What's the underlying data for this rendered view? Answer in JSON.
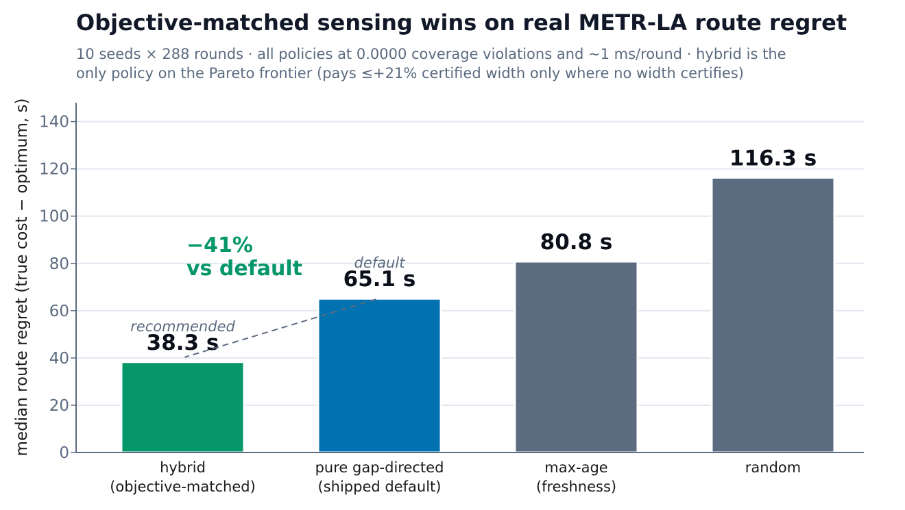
{
  "chart_data": {
    "type": "bar",
    "title": "Objective-matched sensing wins on real METR-LA route regret",
    "subtitle_lines": [
      "10 seeds × 288 rounds · all policies at 0.0000 coverage violations and ~1 ms/round · hybrid is the",
      "only policy on the Pareto frontier (pays ≤+21% certified width only where no width certifies)"
    ],
    "xlabel": "",
    "ylabel": "median route regret   (true cost − optimum, s)",
    "ylim": [
      0,
      148
    ],
    "yticks": [
      0,
      20,
      40,
      60,
      80,
      100,
      120,
      140
    ],
    "grid": true,
    "categories": [
      [
        "hybrid",
        "(objective-matched)"
      ],
      [
        "pure gap-directed",
        "(shipped default)"
      ],
      [
        "max-age",
        "(freshness)"
      ],
      [
        "random"
      ]
    ],
    "values": [
      38.3,
      65.1,
      80.8,
      116.3
    ],
    "value_labels": [
      "38.3 s",
      "65.1 s",
      "80.8 s",
      "116.3 s"
    ],
    "bar_tags": [
      "recommended",
      "default",
      "",
      ""
    ],
    "colors": [
      "#059669",
      "#0072b2",
      "#5b6b80",
      "#5b6b80"
    ],
    "annotation": {
      "lines": [
        "−41%",
        "vs default"
      ],
      "color": "#059669",
      "from_category": 1,
      "to_category": 0,
      "style": "dashed"
    }
  }
}
